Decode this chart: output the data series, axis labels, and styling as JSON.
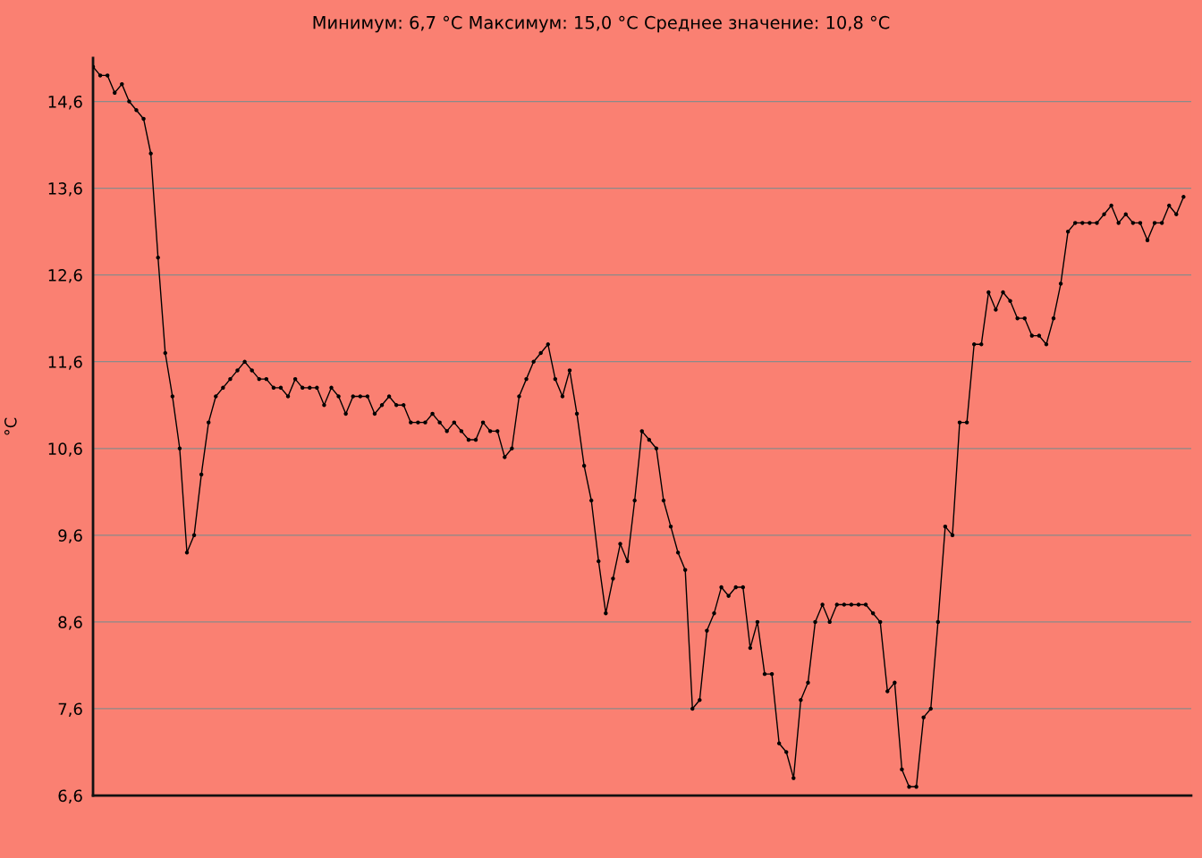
{
  "chart_data": {
    "type": "line",
    "title": "Минимум: 6,7 °C Максимум: 15,0 °C Среднее значение: 10,8 °C",
    "ylabel": "°C",
    "categories": [
      null,
      null,
      null,
      null,
      null,
      null,
      null,
      null,
      null,
      null,
      null,
      null,
      null,
      null,
      null,
      null,
      null,
      null,
      null,
      null,
      null,
      null,
      null,
      null,
      null,
      null,
      null,
      null,
      null,
      null,
      null,
      null,
      null,
      null,
      null,
      null,
      null,
      null,
      null,
      null,
      null,
      null,
      null,
      null,
      null,
      null,
      null,
      null,
      null,
      null,
      null,
      null,
      null,
      null,
      null,
      null,
      null,
      null,
      null,
      null,
      null,
      null,
      null,
      null,
      null,
      null,
      null,
      null,
      null,
      null,
      null,
      null,
      null,
      null,
      null,
      null,
      null,
      null,
      null,
      null,
      null,
      null,
      null,
      null,
      null,
      null,
      null,
      null,
      null,
      null,
      null,
      null,
      null,
      null,
      null,
      null,
      null,
      null,
      null,
      null,
      null,
      null,
      null,
      null,
      null,
      null,
      null,
      null,
      null,
      null,
      null,
      null,
      null,
      null,
      null,
      null,
      null,
      null,
      null,
      null,
      null,
      null,
      null,
      null,
      null,
      null,
      null,
      null,
      null,
      null,
      null,
      null,
      null,
      null,
      null,
      null,
      null,
      null,
      null,
      null,
      null,
      null,
      null,
      null,
      null,
      null,
      null,
      null,
      null,
      null,
      null,
      null
    ],
    "series": [
      {
        "color": "#000000",
        "values": [
          15.0,
          14.9,
          14.9,
          14.7,
          14.8,
          14.6,
          14.5,
          14.4,
          14.0,
          12.8,
          11.7,
          11.2,
          10.6,
          9.4,
          9.6,
          10.3,
          10.9,
          11.2,
          11.3,
          11.4,
          11.5,
          11.6,
          11.5,
          11.4,
          11.4,
          11.3,
          11.3,
          11.2,
          11.4,
          11.3,
          11.3,
          11.3,
          11.1,
          11.3,
          11.2,
          11.0,
          11.2,
          11.2,
          11.2,
          11.0,
          11.1,
          11.2,
          11.1,
          11.1,
          10.9,
          10.9,
          10.9,
          11.0,
          10.9,
          10.8,
          10.9,
          10.8,
          10.7,
          10.7,
          10.9,
          10.8,
          10.8,
          10.5,
          10.6,
          11.2,
          11.4,
          11.6,
          11.7,
          11.8,
          11.4,
          11.2,
          11.5,
          11.0,
          10.4,
          10.0,
          9.3,
          8.7,
          9.1,
          9.5,
          9.3,
          10.0,
          10.8,
          10.7,
          10.6,
          10.0,
          9.7,
          9.4,
          9.2,
          7.6,
          7.7,
          8.5,
          8.7,
          9.0,
          8.9,
          9.0,
          9.0,
          8.3,
          8.6,
          8.0,
          8.0,
          7.2,
          7.1,
          6.8,
          7.7,
          7.9,
          8.6,
          8.8,
          8.6,
          8.8,
          8.8,
          8.8,
          8.8,
          8.8,
          8.7,
          8.6,
          7.8,
          7.9,
          6.9,
          6.7,
          6.7,
          7.5,
          7.6,
          8.6,
          9.7,
          9.6,
          10.9,
          10.9,
          11.8,
          11.8,
          12.4,
          12.2,
          12.4,
          12.3,
          12.1,
          12.1,
          11.9,
          11.9,
          11.8,
          12.1,
          12.5,
          13.1,
          13.2,
          13.2,
          13.2,
          13.2,
          13.3,
          13.4,
          13.2,
          13.3,
          13.2,
          13.2,
          13.0,
          13.2,
          13.2,
          13.4,
          13.3,
          13.5
        ]
      }
    ],
    "ylim": [
      6.6,
      15.1
    ],
    "yticks": [
      {
        "value": 6.6,
        "label": "6,6"
      },
      {
        "value": 7.6,
        "label": "7,6"
      },
      {
        "value": 8.6,
        "label": "8,6"
      },
      {
        "value": 9.6,
        "label": "9,6"
      },
      {
        "value": 10.6,
        "label": "10,6"
      },
      {
        "value": 11.6,
        "label": "11,6"
      },
      {
        "value": 12.6,
        "label": "12,6"
      },
      {
        "value": 13.6,
        "label": "13,6"
      },
      {
        "value": 14.6,
        "label": "14,6"
      }
    ],
    "tick_labels": "y",
    "grid": "y",
    "legend": false,
    "marker": "circle",
    "line_style": "solid"
  }
}
